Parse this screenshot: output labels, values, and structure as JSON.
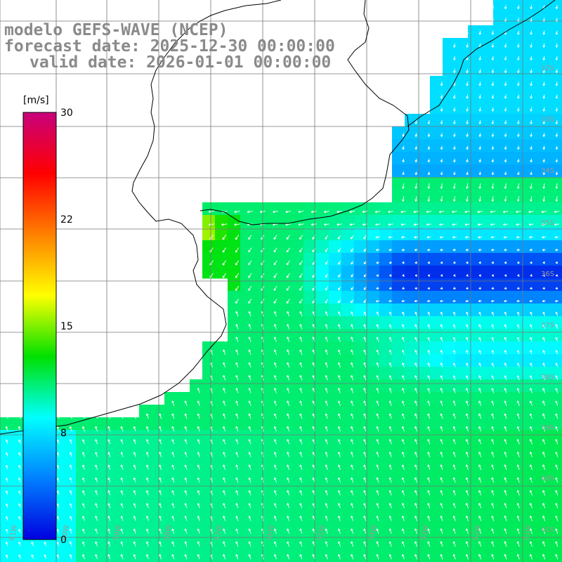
{
  "title": {
    "line1": "modelo GEFS-WAVE (NCEP)",
    "line2": "forecast date: 2025-12-30 00:00:00",
    "line3": "valid date: 2026-01-01 00:00:00"
  },
  "colorbar": {
    "unit": "[m/s]",
    "ticks": [
      "30",
      "22",
      "15",
      "8",
      "0"
    ],
    "colors": [
      "#c8007c",
      "#ff0000",
      "#ff8000",
      "#ffff00",
      "#00e000",
      "#00ffff",
      "#0080ff",
      "#0000e0"
    ]
  },
  "grid": {
    "lat_labels": [
      "32S",
      "33S",
      "34S",
      "35S",
      "36S",
      "37S",
      "38S",
      "39S",
      "40S",
      "41S"
    ],
    "lon_labels": [
      "61W",
      "60W",
      "59W",
      "58W",
      "57W",
      "56W",
      "55W",
      "54W",
      "53W",
      "52W",
      "51W"
    ]
  },
  "map_layers": [
    "wind-speed-field",
    "wind-direction-arrows",
    "coastline",
    "lat-lon-grid"
  ]
}
